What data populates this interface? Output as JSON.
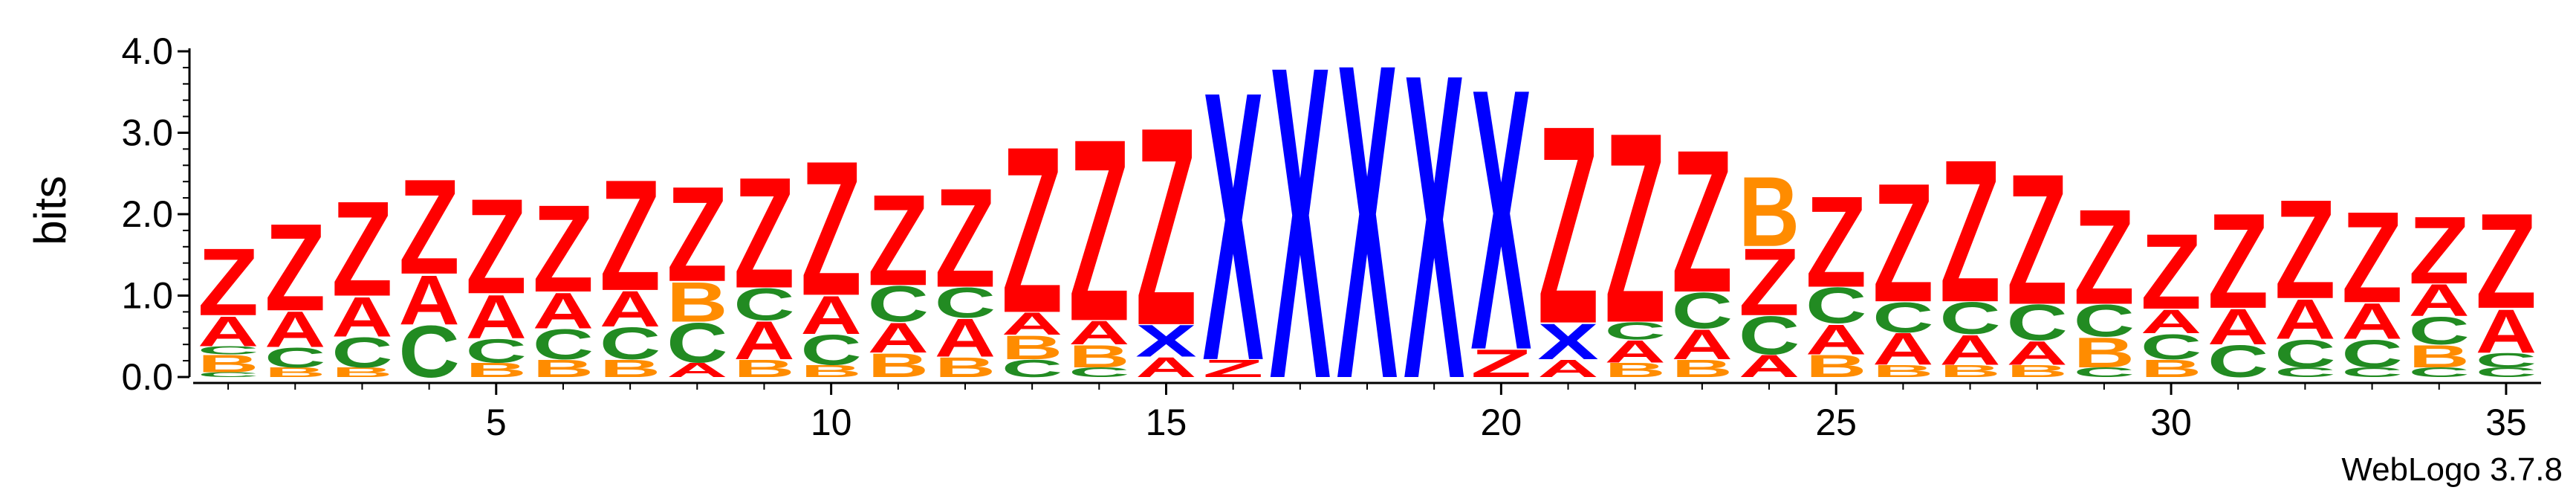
{
  "chart_data": {
    "type": "sequence-logo",
    "ylabel": "bits",
    "ylim": [
      0,
      4
    ],
    "yticks": [
      "0.0",
      "1.0",
      "2.0",
      "3.0",
      "4.0"
    ],
    "xticks": [
      5,
      10,
      15,
      20,
      25,
      30,
      35
    ],
    "colors": {
      "Z": "#ff0000",
      "X": "#0000ff",
      "A": "#ff0000",
      "B": "#ff8c00",
      "C": "#228b22"
    },
    "positions": [
      {
        "pos": 1,
        "stack": [
          {
            "l": "C",
            "h": 0.06
          },
          {
            "l": "B",
            "h": 0.22
          },
          {
            "l": "C",
            "h": 0.1
          },
          {
            "l": "A",
            "h": 0.38
          },
          {
            "l": "Z",
            "h": 0.85
          }
        ]
      },
      {
        "pos": 2,
        "stack": [
          {
            "l": "B",
            "h": 0.12
          },
          {
            "l": "C",
            "h": 0.25
          },
          {
            "l": "A",
            "h": 0.45
          },
          {
            "l": "Z",
            "h": 1.1
          }
        ]
      },
      {
        "pos": 3,
        "stack": [
          {
            "l": "B",
            "h": 0.12
          },
          {
            "l": "C",
            "h": 0.38
          },
          {
            "l": "A",
            "h": 0.5
          },
          {
            "l": "Z",
            "h": 1.2
          }
        ]
      },
      {
        "pos": 4,
        "stack": [
          {
            "l": "C",
            "h": 0.65
          },
          {
            "l": "A",
            "h": 0.62
          },
          {
            "l": "Z",
            "h": 1.2
          }
        ]
      },
      {
        "pos": 5,
        "stack": [
          {
            "l": "B",
            "h": 0.18
          },
          {
            "l": "C",
            "h": 0.3
          },
          {
            "l": "A",
            "h": 0.55
          },
          {
            "l": "Z",
            "h": 1.2
          }
        ]
      },
      {
        "pos": 6,
        "stack": [
          {
            "l": "B",
            "h": 0.22
          },
          {
            "l": "C",
            "h": 0.38
          },
          {
            "l": "A",
            "h": 0.45
          },
          {
            "l": "Z",
            "h": 1.1
          }
        ]
      },
      {
        "pos": 7,
        "stack": [
          {
            "l": "B",
            "h": 0.22
          },
          {
            "l": "C",
            "h": 0.4
          },
          {
            "l": "A",
            "h": 0.45
          },
          {
            "l": "Z",
            "h": 1.4
          }
        ]
      },
      {
        "pos": 8,
        "stack": [
          {
            "l": "A",
            "h": 0.18
          },
          {
            "l": "C",
            "h": 0.5
          },
          {
            "l": "B",
            "h": 0.5
          },
          {
            "l": "Z",
            "h": 1.2
          }
        ]
      },
      {
        "pos": 9,
        "stack": [
          {
            "l": "B",
            "h": 0.22
          },
          {
            "l": "A",
            "h": 0.48
          },
          {
            "l": "C",
            "h": 0.4
          },
          {
            "l": "Z",
            "h": 1.4
          }
        ]
      },
      {
        "pos": 10,
        "stack": [
          {
            "l": "B",
            "h": 0.15
          },
          {
            "l": "C",
            "h": 0.38
          },
          {
            "l": "A",
            "h": 0.48
          },
          {
            "l": "Z",
            "h": 1.7
          }
        ]
      },
      {
        "pos": 11,
        "stack": [
          {
            "l": "B",
            "h": 0.3
          },
          {
            "l": "A",
            "h": 0.38
          },
          {
            "l": "C",
            "h": 0.45
          },
          {
            "l": "Z",
            "h": 1.15
          }
        ]
      },
      {
        "pos": 12,
        "stack": [
          {
            "l": "B",
            "h": 0.25
          },
          {
            "l": "A",
            "h": 0.48
          },
          {
            "l": "C",
            "h": 0.38
          },
          {
            "l": "Z",
            "h": 1.25
          }
        ]
      },
      {
        "pos": 13,
        "stack": [
          {
            "l": "C",
            "h": 0.22
          },
          {
            "l": "B",
            "h": 0.3
          },
          {
            "l": "A",
            "h": 0.28
          },
          {
            "l": "Z",
            "h": 2.1
          }
        ]
      },
      {
        "pos": 14,
        "stack": [
          {
            "l": "C",
            "h": 0.12
          },
          {
            "l": "B",
            "h": 0.28
          },
          {
            "l": "A",
            "h": 0.3
          },
          {
            "l": "Z",
            "h": 2.3
          }
        ]
      },
      {
        "pos": 15,
        "stack": [
          {
            "l": "A",
            "h": 0.25
          },
          {
            "l": "X",
            "h": 0.4
          },
          {
            "l": "Z",
            "h": 2.5
          }
        ]
      },
      {
        "pos": 16,
        "stack": [
          {
            "l": "Z",
            "h": 0.22
          },
          {
            "l": "X",
            "h": 3.4
          }
        ]
      },
      {
        "pos": 17,
        "stack": [
          {
            "l": "X",
            "h": 3.95
          }
        ]
      },
      {
        "pos": 18,
        "stack": [
          {
            "l": "X",
            "h": 3.98
          }
        ]
      },
      {
        "pos": 19,
        "stack": [
          {
            "l": "X",
            "h": 3.85
          }
        ]
      },
      {
        "pos": 20,
        "stack": [
          {
            "l": "Z",
            "h": 0.35
          },
          {
            "l": "X",
            "h": 3.3
          }
        ]
      },
      {
        "pos": 21,
        "stack": [
          {
            "l": "A",
            "h": 0.22
          },
          {
            "l": "X",
            "h": 0.45
          },
          {
            "l": "Z",
            "h": 2.5
          }
        ]
      },
      {
        "pos": 22,
        "stack": [
          {
            "l": "B",
            "h": 0.18
          },
          {
            "l": "A",
            "h": 0.28
          },
          {
            "l": "C",
            "h": 0.22
          },
          {
            "l": "Z",
            "h": 2.4
          }
        ]
      },
      {
        "pos": 23,
        "stack": [
          {
            "l": "B",
            "h": 0.22
          },
          {
            "l": "A",
            "h": 0.38
          },
          {
            "l": "C",
            "h": 0.45
          },
          {
            "l": "Z",
            "h": 1.8
          }
        ]
      },
      {
        "pos": 24,
        "stack": [
          {
            "l": "A",
            "h": 0.28
          },
          {
            "l": "C",
            "h": 0.48
          },
          {
            "l": "Z",
            "h": 0.85
          },
          {
            "l": "B",
            "h": 0.88
          }
        ]
      },
      {
        "pos": 25,
        "stack": [
          {
            "l": "B",
            "h": 0.28
          },
          {
            "l": "A",
            "h": 0.38
          },
          {
            "l": "C",
            "h": 0.45
          },
          {
            "l": "Z",
            "h": 1.15
          }
        ]
      },
      {
        "pos": 26,
        "stack": [
          {
            "l": "B",
            "h": 0.15
          },
          {
            "l": "A",
            "h": 0.4
          },
          {
            "l": "C",
            "h": 0.38
          },
          {
            "l": "Z",
            "h": 1.5
          }
        ]
      },
      {
        "pos": 27,
        "stack": [
          {
            "l": "B",
            "h": 0.15
          },
          {
            "l": "A",
            "h": 0.38
          },
          {
            "l": "C",
            "h": 0.4
          },
          {
            "l": "Z",
            "h": 1.8
          }
        ]
      },
      {
        "pos": 28,
        "stack": [
          {
            "l": "B",
            "h": 0.15
          },
          {
            "l": "A",
            "h": 0.3
          },
          {
            "l": "C",
            "h": 0.45
          },
          {
            "l": "Z",
            "h": 1.65
          }
        ]
      },
      {
        "pos": 29,
        "stack": [
          {
            "l": "C",
            "h": 0.12
          },
          {
            "l": "B",
            "h": 0.38
          },
          {
            "l": "C",
            "h": 0.4
          },
          {
            "l": "Z",
            "h": 1.2
          }
        ]
      },
      {
        "pos": 30,
        "stack": [
          {
            "l": "B",
            "h": 0.22
          },
          {
            "l": "C",
            "h": 0.32
          },
          {
            "l": "A",
            "h": 0.3
          },
          {
            "l": "Z",
            "h": 0.95
          }
        ]
      },
      {
        "pos": 31,
        "stack": [
          {
            "l": "C",
            "h": 0.4
          },
          {
            "l": "A",
            "h": 0.45
          },
          {
            "l": "Z",
            "h": 1.2
          }
        ]
      },
      {
        "pos": 32,
        "stack": [
          {
            "l": "C",
            "h": 0.12
          },
          {
            "l": "C",
            "h": 0.35
          },
          {
            "l": "A",
            "h": 0.5
          },
          {
            "l": "Z",
            "h": 1.25
          }
        ]
      },
      {
        "pos": 33,
        "stack": [
          {
            "l": "C",
            "h": 0.12
          },
          {
            "l": "C",
            "h": 0.35
          },
          {
            "l": "A",
            "h": 0.45
          },
          {
            "l": "Z",
            "h": 1.15
          }
        ]
      },
      {
        "pos": 34,
        "stack": [
          {
            "l": "C",
            "h": 0.12
          },
          {
            "l": "B",
            "h": 0.28
          },
          {
            "l": "C",
            "h": 0.35
          },
          {
            "l": "A",
            "h": 0.4
          },
          {
            "l": "Z",
            "h": 0.85
          }
        ]
      },
      {
        "pos": 35,
        "stack": [
          {
            "l": "C",
            "h": 0.12
          },
          {
            "l": "C",
            "h": 0.18
          },
          {
            "l": "A",
            "h": 0.55
          },
          {
            "l": "Z",
            "h": 1.2
          }
        ]
      }
    ],
    "credit": "WebLogo 3.7.8"
  }
}
